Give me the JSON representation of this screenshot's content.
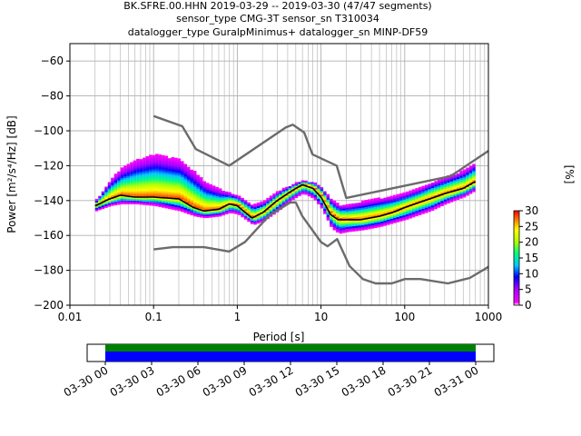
{
  "title": {
    "line1": "BK.SFRE.00.HHN   2019-03-29 -- 2019-03-30  (47/47 segments)",
    "line2": "sensor_type CMG-3T sensor_sn T310034",
    "line3": "datalogger_type GuralpMinimus+ datalogger_sn MINP-DF59"
  },
  "colorbar": {
    "label": "[%]",
    "ticks": [
      "0",
      "5",
      "10",
      "15",
      "20",
      "25",
      "30"
    ],
    "range": [
      0,
      30
    ]
  },
  "colors": {
    "noise_models": "#6b6b6b",
    "mode_line": "#000000",
    "grid": "#b0b0b0",
    "timeline_green": "#008000",
    "timeline_blue": "#0000ff"
  },
  "timeline": {
    "ticks": [
      "03-30 00",
      "03-30 03",
      "03-30 06",
      "03-30 09",
      "03-30 12",
      "03-30 15",
      "03-30 18",
      "03-30 21",
      "03-31 00"
    ]
  },
  "chart_data": {
    "type": "heatmap",
    "xlabel": "Period [s]",
    "ylabel": "Power [m²/s⁴/Hz] [dB]",
    "xscale": "log",
    "xlim": [
      0.01,
      1000
    ],
    "ylim": [
      -200,
      -50
    ],
    "x_ticks": [
      "0.01",
      "0.1",
      "1",
      "10",
      "100",
      "1000"
    ],
    "y_ticks": [
      "-200",
      "-180",
      "-160",
      "-140",
      "-120",
      "-100",
      "-80",
      "-60"
    ],
    "grid": true,
    "series": [
      {
        "name": "high noise model",
        "period": [
          0.1,
          0.22,
          0.32,
          0.8,
          3.8,
          4.6,
          6.3,
          7.9,
          15.4,
          20,
          354.8,
          1000
        ],
        "power": [
          -91.5,
          -97.4,
          -110.5,
          -120,
          -98,
          -96.5,
          -101,
          -113.5,
          -120,
          -138.5,
          -126,
          -111.5
        ]
      },
      {
        "name": "low noise model",
        "period": [
          0.1,
          0.17,
          0.4,
          0.8,
          1.24,
          2.4,
          4.3,
          5.0,
          6.0,
          10.0,
          12.0,
          15.6,
          21.9,
          31.6,
          45,
          70,
          101,
          154,
          328,
          600,
          1000
        ],
        "power": [
          -168,
          -166.7,
          -166.7,
          -169.2,
          -163.7,
          -148.6,
          -141.1,
          -141.1,
          -149,
          -163.8,
          -166.2,
          -162.1,
          -177.5,
          -185,
          -187.5,
          -187.5,
          -185,
          -185,
          -187.5,
          -184.4,
          -178
        ]
      },
      {
        "name": "mode",
        "period": [
          0.02,
          0.03,
          0.04,
          0.06,
          0.1,
          0.2,
          0.3,
          0.4,
          0.6,
          0.8,
          1.0,
          1.5,
          2.0,
          3.0,
          4.0,
          5.0,
          6.0,
          8.0,
          10,
          13,
          16,
          20,
          30,
          50,
          70,
          100,
          150,
          200,
          300,
          500,
          700
        ],
        "power": [
          -143,
          -139,
          -137,
          -138,
          -138,
          -139,
          -144,
          -146,
          -145,
          -142,
          -143,
          -150,
          -147,
          -140,
          -136,
          -133,
          -131,
          -133,
          -138,
          -148,
          -151,
          -151,
          -151,
          -149,
          -147,
          -144,
          -141,
          -139,
          -136,
          -133,
          -129
        ]
      }
    ],
    "spread_envelope": {
      "period": [
        0.02,
        0.03,
        0.04,
        0.06,
        0.1,
        0.2,
        0.3,
        0.4,
        0.6,
        0.8,
        1.0,
        1.5,
        2.0,
        3.0,
        4.0,
        5.0,
        6.0,
        8.0,
        10,
        13,
        16,
        20,
        30,
        50,
        70,
        100,
        150,
        200,
        300,
        500,
        700
      ],
      "upper": [
        -140,
        -128,
        -122,
        -117,
        -114,
        -117,
        -124,
        -130,
        -134,
        -136,
        -138,
        -143,
        -141,
        -135,
        -132,
        -130,
        -129,
        -130,
        -133,
        -140,
        -143,
        -143,
        -141,
        -139,
        -138,
        -136,
        -133,
        -130,
        -127,
        -123,
        -118
      ],
      "lower": [
        -146,
        -143,
        -142,
        -142,
        -143,
        -146,
        -149,
        -150,
        -149,
        -147,
        -148,
        -154,
        -152,
        -146,
        -141,
        -138,
        -136,
        -139,
        -145,
        -156,
        -159,
        -158,
        -157,
        -155,
        -153,
        -151,
        -148,
        -146,
        -142,
        -138,
        -134
      ]
    }
  }
}
